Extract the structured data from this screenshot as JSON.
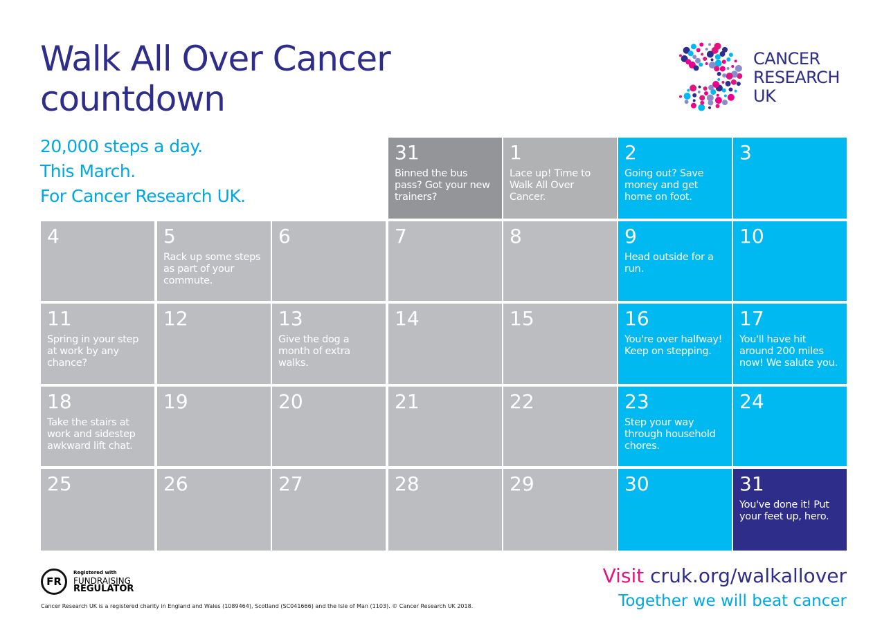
{
  "header": {
    "title_lines": [
      "Walk All Over Cancer",
      "countdown"
    ],
    "tagline_lines": [
      "20,000 steps a day.",
      "This March.",
      "For Cancer Research UK."
    ]
  },
  "logo": {
    "lines": [
      "CANCER",
      "RESEARCH",
      "UK"
    ]
  },
  "calendar": {
    "weeks": [
      [
        {
          "day": 31,
          "text": "Binned the bus pass? Got your new trainers?",
          "color": "#939598"
        },
        {
          "day": 1,
          "text": "Lace up! Time to Walk All Over Cancer.",
          "color": "#b1b2b4"
        },
        {
          "day": 2,
          "text": "Going out? Save money and get home on foot.",
          "color": "#00b9f1"
        },
        {
          "day": 3,
          "color": "#00b9f1"
        }
      ],
      [
        {
          "day": 4,
          "color": "#bcbdc0"
        },
        {
          "day": 5,
          "text": "Rack up some steps as part of your commute.",
          "color": "#bcbdc0"
        },
        {
          "day": 6,
          "color": "#bcbdc0"
        },
        {
          "day": 7,
          "color": "#bcbdc0"
        },
        {
          "day": 8,
          "color": "#bcbdc0"
        },
        {
          "day": 9,
          "text": "Head outside for a run.",
          "color": "#00b9f1"
        },
        {
          "day": 10,
          "color": "#00b9f1"
        }
      ],
      [
        {
          "day": 11,
          "text": "Spring in your step at work by any chance?",
          "color": "#bcbdc0"
        },
        {
          "day": 12,
          "color": "#bcbdc0"
        },
        {
          "day": 13,
          "text": "Give the dog a month of extra walks.",
          "color": "#bcbdc0"
        },
        {
          "day": 14,
          "color": "#bcbdc0"
        },
        {
          "day": 15,
          "color": "#bcbdc0"
        },
        {
          "day": 16,
          "text": "You're over halfway! Keep on stepping.",
          "color": "#00b9f1"
        },
        {
          "day": 17,
          "text": "You'll have hit around 200 miles now! We salute you.",
          "color": "#00b9f1"
        }
      ],
      [
        {
          "day": 18,
          "text": "Take the stairs at work and sidestep awkward lift chat.",
          "color": "#bcbdc0"
        },
        {
          "day": 19,
          "color": "#bcbdc0"
        },
        {
          "day": 20,
          "color": "#bcbdc0"
        },
        {
          "day": 21,
          "color": "#bcbdc0"
        },
        {
          "day": 22,
          "color": "#bcbdc0"
        },
        {
          "day": 23,
          "text": "Step your way through household chores.",
          "color": "#00b9f1"
        },
        {
          "day": 24,
          "color": "#00b9f1"
        }
      ],
      [
        {
          "day": 25,
          "color": "#bcbdc0"
        },
        {
          "day": 26,
          "color": "#bcbdc0"
        },
        {
          "day": 27,
          "color": "#bcbdc0"
        },
        {
          "day": 28,
          "color": "#bcbdc0"
        },
        {
          "day": 29,
          "color": "#bcbdc0"
        },
        {
          "day": 30,
          "color": "#00b9f1"
        },
        {
          "day": 31,
          "text": "You've done it! Put your feet up, hero.",
          "color": "#2e2d8a"
        }
      ]
    ]
  },
  "footer": {
    "fr_badge": "FR",
    "fr_lines": [
      "Registered with",
      "FUNDRAISING",
      "REGULATOR"
    ],
    "legal": "Cancer Research UK is a registered charity in England and Wales (1089464), Scotland (SC041666) and the Isle of Man (1103). © Cancer Research UK 2018.",
    "visit": "Visit",
    "url": "cruk.org/walkallover",
    "slogan": "Together we will beat cancer"
  }
}
